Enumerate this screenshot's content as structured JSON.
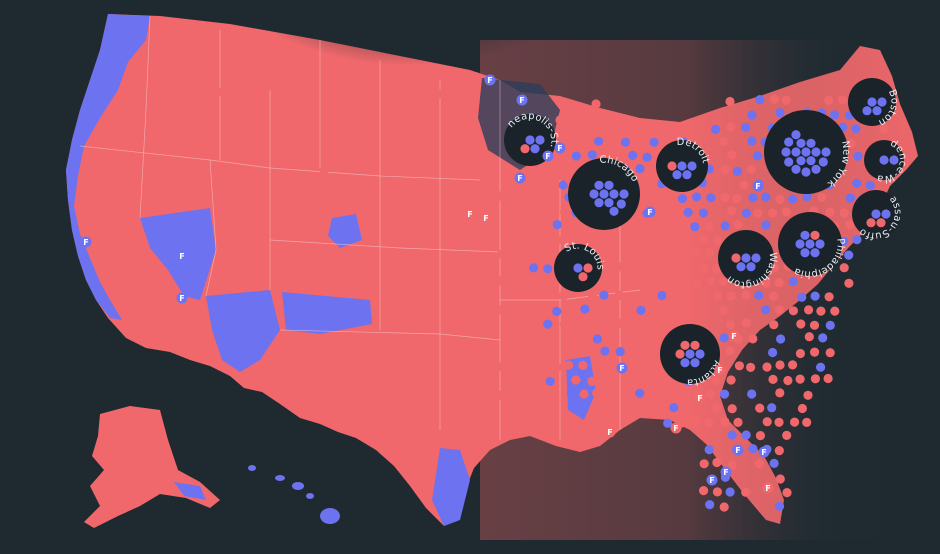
{
  "colors": {
    "background": "#1f2a30",
    "republican": "#f0686b",
    "democrat": "#6d73f0",
    "land_gray": "#2c3840",
    "border": "#e9c9c9"
  },
  "legend_marker": "F",
  "metros": [
    {
      "id": "minneapolis",
      "label": "Minneapolis-St. Paul"
    },
    {
      "id": "chicago",
      "label": "Chicago"
    },
    {
      "id": "detroit",
      "label": "Detroit"
    },
    {
      "id": "new-york",
      "label": "New York"
    },
    {
      "id": "boston",
      "label": "Boston"
    },
    {
      "id": "providence",
      "label": "Providence-Warwick"
    },
    {
      "id": "nassau",
      "label": "Nassau-Suffolk"
    },
    {
      "id": "philadelphia",
      "label": "Philadelphia"
    },
    {
      "id": "washington",
      "label": "Washington"
    },
    {
      "id": "st-louis",
      "label": "St. Louis"
    },
    {
      "id": "atlanta",
      "label": "Atlanta"
    }
  ]
}
